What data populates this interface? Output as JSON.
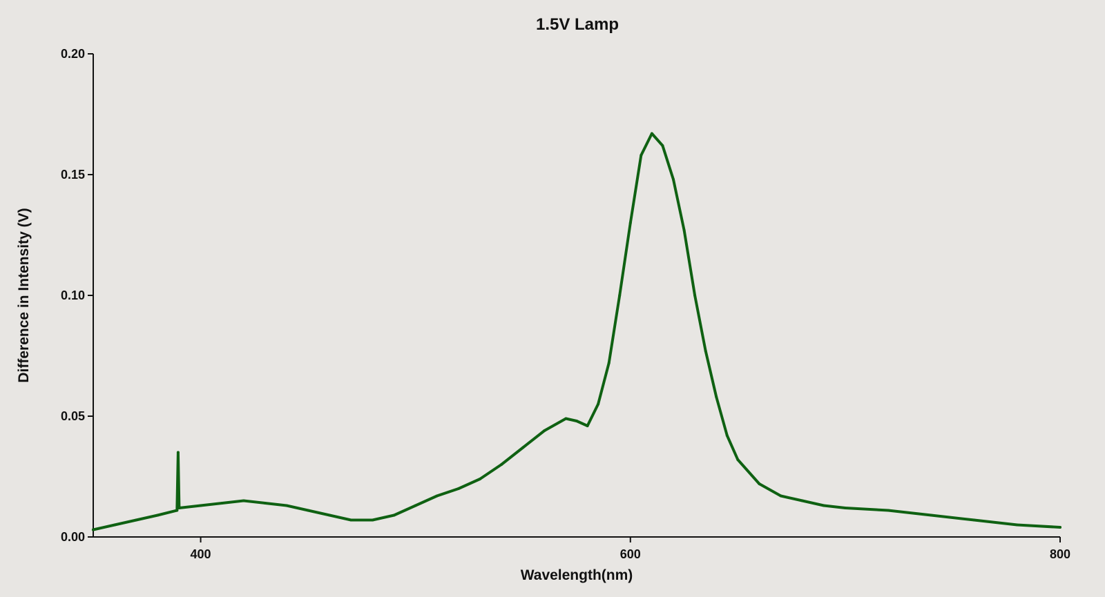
{
  "chart_data": {
    "type": "line",
    "title": "1.5V Lamp",
    "xlabel": "Wavelength(nm)",
    "ylabel": "Difference in Intensity (V)",
    "xlim": [
      350,
      800
    ],
    "ylim": [
      0,
      0.2
    ],
    "x_ticks": [
      400,
      600,
      800
    ],
    "x_tick_labels": [
      "400",
      "600",
      "800"
    ],
    "y_ticks": [
      0,
      0.05,
      0.1,
      0.15,
      0.2
    ],
    "y_tick_labels": [
      "0.00",
      "0.05",
      "0.10",
      "0.15",
      "0.20"
    ],
    "grid": false,
    "legend": "none",
    "line_color": "#0f6112",
    "series": [
      {
        "x": [
          350,
          360,
          370,
          380,
          389,
          389.5,
          390,
          400,
          410,
          420,
          430,
          440,
          450,
          460,
          470,
          480,
          490,
          500,
          510,
          520,
          530,
          540,
          550,
          560,
          570,
          575,
          580,
          585,
          590,
          595,
          600,
          605,
          610,
          615,
          620,
          625,
          630,
          635,
          640,
          645,
          650,
          660,
          670,
          680,
          690,
          700,
          720,
          740,
          760,
          780,
          800
        ],
        "y": [
          0.003,
          0.005,
          0.007,
          0.009,
          0.011,
          0.035,
          0.012,
          0.013,
          0.014,
          0.015,
          0.014,
          0.013,
          0.011,
          0.009,
          0.007,
          0.007,
          0.009,
          0.013,
          0.017,
          0.02,
          0.024,
          0.03,
          0.037,
          0.044,
          0.049,
          0.048,
          0.046,
          0.055,
          0.072,
          0.1,
          0.13,
          0.158,
          0.167,
          0.162,
          0.148,
          0.127,
          0.1,
          0.077,
          0.058,
          0.042,
          0.032,
          0.022,
          0.017,
          0.015,
          0.013,
          0.012,
          0.011,
          0.009,
          0.007,
          0.005,
          0.004
        ]
      }
    ]
  }
}
